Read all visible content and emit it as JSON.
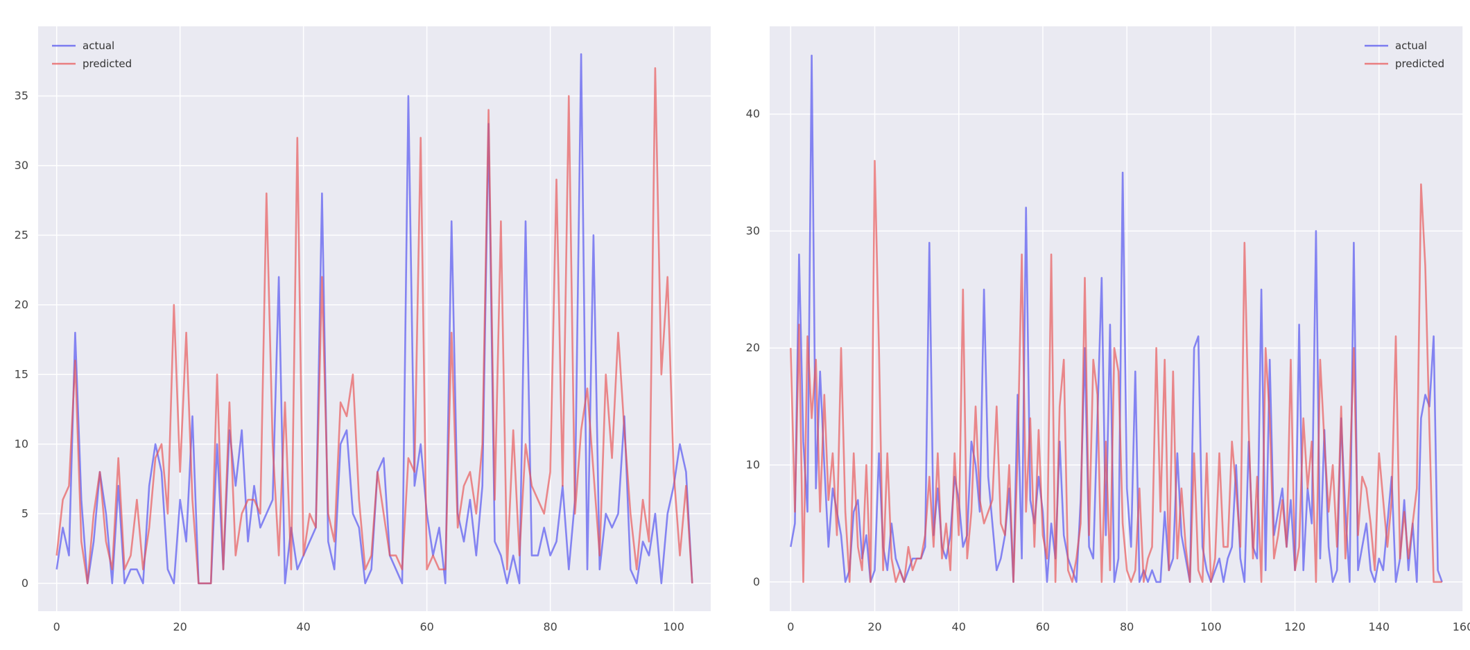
{
  "chart_data": [
    {
      "type": "line",
      "title": "",
      "xlabel": "",
      "ylabel": "",
      "xlim": [
        -3,
        106
      ],
      "ylim": [
        -2,
        40
      ],
      "xticks": [
        0,
        20,
        40,
        60,
        80,
        100
      ],
      "yticks": [
        0,
        5,
        10,
        15,
        20,
        25,
        30,
        35
      ],
      "grid": true,
      "legend": "top-left",
      "series": [
        {
          "name": "actual",
          "color": "#4b4bf0",
          "x": [
            0,
            1,
            2,
            3,
            4,
            5,
            6,
            7,
            8,
            9,
            10,
            11,
            12,
            13,
            14,
            15,
            16,
            17,
            18,
            19,
            20,
            21,
            22,
            23,
            24,
            25,
            26,
            27,
            28,
            29,
            30,
            31,
            32,
            33,
            34,
            35,
            36,
            37,
            38,
            39,
            40,
            41,
            42,
            43,
            44,
            45,
            46,
            47,
            48,
            49,
            50,
            51,
            52,
            53,
            54,
            55,
            56,
            57,
            58,
            59,
            60,
            61,
            62,
            63,
            64,
            65,
            66,
            67,
            68,
            69,
            70,
            71,
            72,
            73,
            74,
            75,
            76,
            77,
            78,
            79,
            80,
            81,
            82,
            83,
            84,
            85,
            86,
            87,
            88,
            89,
            90,
            91,
            92,
            93,
            94,
            95,
            96,
            97,
            98,
            99,
            100,
            101,
            102,
            103
          ],
          "y": [
            1,
            4,
            2,
            18,
            6,
            0,
            3,
            8,
            5,
            0,
            7,
            0,
            1,
            1,
            0,
            7,
            10,
            8,
            1,
            0,
            6,
            3,
            12,
            0,
            0,
            0,
            10,
            1,
            11,
            7,
            11,
            3,
            7,
            4,
            5,
            6,
            22,
            0,
            4,
            1,
            2,
            3,
            4,
            28,
            3,
            1,
            10,
            11,
            5,
            4,
            0,
            1,
            8,
            9,
            2,
            1,
            0,
            35,
            7,
            10,
            5,
            2,
            4,
            0,
            26,
            5,
            3,
            6,
            2,
            7,
            33,
            3,
            2,
            0,
            2,
            0,
            26,
            2,
            2,
            4,
            2,
            3,
            7,
            1,
            6,
            38,
            1,
            25,
            1,
            5,
            4,
            5,
            12,
            1,
            0,
            3,
            2,
            5,
            0,
            5,
            7,
            10,
            8,
            0
          ]
        },
        {
          "name": "predicted",
          "color": "#e85050",
          "x": [
            0,
            1,
            2,
            3,
            4,
            5,
            6,
            7,
            8,
            9,
            10,
            11,
            12,
            13,
            14,
            15,
            16,
            17,
            18,
            19,
            20,
            21,
            22,
            23,
            24,
            25,
            26,
            27,
            28,
            29,
            30,
            31,
            32,
            33,
            34,
            35,
            36,
            37,
            38,
            39,
            40,
            41,
            42,
            43,
            44,
            45,
            46,
            47,
            48,
            49,
            50,
            51,
            52,
            53,
            54,
            55,
            56,
            57,
            58,
            59,
            60,
            61,
            62,
            63,
            64,
            65,
            66,
            67,
            68,
            69,
            70,
            71,
            72,
            73,
            74,
            75,
            76,
            77,
            78,
            79,
            80,
            81,
            82,
            83,
            84,
            85,
            86,
            87,
            88,
            89,
            90,
            91,
            92,
            93,
            94,
            95,
            96,
            97,
            98,
            99,
            100,
            101,
            102,
            103
          ],
          "y": [
            2,
            6,
            7,
            16,
            3,
            0,
            5,
            8,
            3,
            1,
            9,
            1,
            2,
            6,
            1,
            4,
            9,
            10,
            5,
            20,
            8,
            18,
            6,
            0,
            0,
            0,
            15,
            1,
            13,
            2,
            5,
            6,
            6,
            5,
            28,
            10,
            2,
            13,
            1,
            32,
            2,
            5,
            4,
            22,
            5,
            3,
            13,
            12,
            15,
            6,
            1,
            2,
            8,
            5,
            2,
            2,
            1,
            9,
            8,
            32,
            1,
            2,
            1,
            1,
            18,
            4,
            7,
            8,
            5,
            10,
            34,
            6,
            26,
            1,
            11,
            2,
            10,
            7,
            6,
            5,
            8,
            29,
            7,
            35,
            5,
            11,
            14,
            8,
            2,
            15,
            9,
            18,
            11,
            5,
            1,
            6,
            3,
            37,
            15,
            22,
            8,
            2,
            7,
            0
          ]
        }
      ]
    },
    {
      "type": "line",
      "title": "",
      "xlabel": "",
      "ylabel": "",
      "xlim": [
        -5,
        160
      ],
      "ylim": [
        -2.5,
        47.5
      ],
      "xticks": [
        0,
        20,
        40,
        60,
        80,
        100,
        120,
        140,
        160
      ],
      "yticks": [
        0,
        10,
        20,
        30,
        40
      ],
      "grid": true,
      "legend": "top-right",
      "series": [
        {
          "name": "actual",
          "color": "#4b4bf0",
          "x": [
            0,
            1,
            2,
            3,
            4,
            5,
            6,
            7,
            8,
            9,
            10,
            11,
            12,
            13,
            14,
            15,
            16,
            17,
            18,
            19,
            20,
            21,
            22,
            23,
            24,
            25,
            26,
            27,
            28,
            29,
            30,
            31,
            32,
            33,
            34,
            35,
            36,
            37,
            38,
            39,
            40,
            41,
            42,
            43,
            44,
            45,
            46,
            47,
            48,
            49,
            50,
            51,
            52,
            53,
            54,
            55,
            56,
            57,
            58,
            59,
            60,
            61,
            62,
            63,
            64,
            65,
            66,
            67,
            68,
            69,
            70,
            71,
            72,
            73,
            74,
            75,
            76,
            77,
            78,
            79,
            80,
            81,
            82,
            83,
            84,
            85,
            86,
            87,
            88,
            89,
            90,
            91,
            92,
            93,
            94,
            95,
            96,
            97,
            98,
            99,
            100,
            101,
            102,
            103,
            104,
            105,
            106,
            107,
            108,
            109,
            110,
            111,
            112,
            113,
            114,
            115,
            116,
            117,
            118,
            119,
            120,
            121,
            122,
            123,
            124,
            125,
            126,
            127,
            128,
            129,
            130,
            131,
            132,
            133,
            134,
            135,
            136,
            137,
            138,
            139,
            140,
            141,
            142,
            143,
            144,
            145,
            146,
            147,
            148,
            149,
            150,
            151,
            152,
            153,
            154,
            155
          ],
          "y": [
            3,
            5,
            28,
            12,
            6,
            45,
            8,
            18,
            10,
            3,
            8,
            6,
            4,
            0,
            1,
            6,
            7,
            2,
            4,
            0,
            1,
            11,
            3,
            1,
            5,
            2,
            1,
            0,
            1,
            2,
            2,
            2,
            3,
            29,
            4,
            8,
            3,
            2,
            4,
            9,
            7,
            3,
            4,
            12,
            10,
            6,
            25,
            9,
            5,
            1,
            2,
            4,
            8,
            0,
            16,
            2,
            32,
            7,
            5,
            9,
            6,
            0,
            5,
            2,
            12,
            4,
            2,
            1,
            0,
            7,
            20,
            3,
            2,
            14,
            26,
            4,
            22,
            0,
            2,
            35,
            8,
            3,
            18,
            0,
            1,
            0,
            1,
            0,
            0,
            6,
            1,
            2,
            11,
            4,
            2,
            0,
            20,
            21,
            3,
            1,
            0,
            1,
            2,
            0,
            2,
            3,
            10,
            2,
            0,
            12,
            3,
            2,
            25,
            1,
            19,
            4,
            6,
            8,
            3,
            7,
            1,
            22,
            1,
            8,
            5,
            30,
            2,
            13,
            3,
            0,
            1,
            14,
            6,
            0,
            29,
            1,
            3,
            5,
            1,
            0,
            2,
            1,
            5,
            9,
            0,
            2,
            7,
            1,
            5,
            0,
            14,
            16,
            15,
            21,
            1,
            0
          ],
          "x_used": 156
        },
        {
          "name": "predicted",
          "color": "#e85050",
          "x": [
            0,
            1,
            2,
            3,
            4,
            5,
            6,
            7,
            8,
            9,
            10,
            11,
            12,
            13,
            14,
            15,
            16,
            17,
            18,
            19,
            20,
            21,
            22,
            23,
            24,
            25,
            26,
            27,
            28,
            29,
            30,
            31,
            32,
            33,
            34,
            35,
            36,
            37,
            38,
            39,
            40,
            41,
            42,
            43,
            44,
            45,
            46,
            47,
            48,
            49,
            50,
            51,
            52,
            53,
            54,
            55,
            56,
            57,
            58,
            59,
            60,
            61,
            62,
            63,
            64,
            65,
            66,
            67,
            68,
            69,
            70,
            71,
            72,
            73,
            74,
            75,
            76,
            77,
            78,
            79,
            80,
            81,
            82,
            83,
            84,
            85,
            86,
            87,
            88,
            89,
            90,
            91,
            92,
            93,
            94,
            95,
            96,
            97,
            98,
            99,
            100,
            101,
            102,
            103,
            104,
            105,
            106,
            107,
            108,
            109,
            110,
            111,
            112,
            113,
            114,
            115,
            116,
            117,
            118,
            119,
            120,
            121,
            122,
            123,
            124,
            125,
            126,
            127,
            128,
            129,
            130,
            131,
            132,
            133,
            134,
            135,
            136,
            137,
            138,
            139,
            140,
            141,
            142,
            143,
            144,
            145,
            146,
            147,
            148,
            149,
            150,
            151,
            152,
            153,
            154,
            155
          ],
          "y": [
            20,
            6,
            22,
            0,
            21,
            14,
            19,
            6,
            16,
            7,
            11,
            4,
            20,
            6,
            0,
            11,
            3,
            1,
            10,
            0,
            36,
            20,
            1,
            11,
            2,
            0,
            1,
            0,
            3,
            1,
            2,
            2,
            4,
            9,
            3,
            11,
            2,
            5,
            1,
            11,
            4,
            25,
            2,
            6,
            15,
            7,
            5,
            6,
            7,
            15,
            5,
            4,
            10,
            0,
            11,
            28,
            6,
            14,
            3,
            13,
            4,
            2,
            28,
            0,
            15,
            19,
            1,
            0,
            2,
            5,
            26,
            4,
            19,
            16,
            0,
            12,
            1,
            20,
            18,
            5,
            1,
            0,
            1,
            8,
            0,
            2,
            3,
            20,
            6,
            19,
            1,
            18,
            2,
            8,
            3,
            0,
            11,
            1,
            0,
            11,
            0,
            2,
            11,
            3,
            3,
            12,
            8,
            3,
            29,
            13,
            2,
            9,
            0,
            20,
            14,
            2,
            4,
            7,
            3,
            19,
            1,
            3,
            14,
            8,
            12,
            0,
            19,
            12,
            6,
            10,
            3,
            15,
            2,
            9,
            20,
            4,
            9,
            8,
            5,
            1,
            11,
            7,
            3,
            7,
            21,
            2,
            6,
            2,
            5,
            8,
            34,
            27,
            13,
            0,
            0,
            0
          ],
          "x_used": 156
        }
      ]
    }
  ]
}
